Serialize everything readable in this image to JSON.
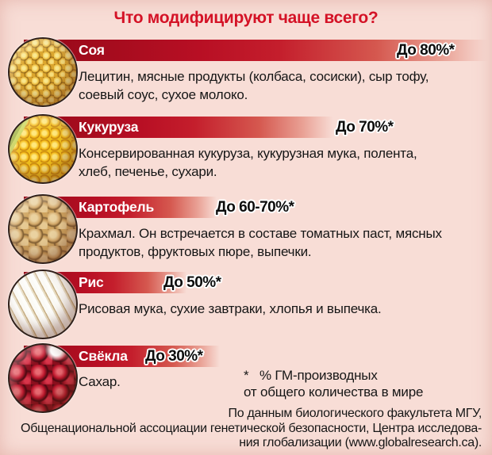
{
  "title": "Что модифицируют чаще всего?",
  "rows": [
    {
      "name": "Соя",
      "icon": "soybeans-icon",
      "percent_label": "До 80%*",
      "description": "Лецитин, мясные продукты (колбаса, сосиски), сыр тофу,\nсоевый соус, сухое молоко."
    },
    {
      "name": "Кукуруза",
      "icon": "corn-icon",
      "percent_label": "До 70%*",
      "description": "Консервированная кукуруза, кукурузная мука, полента,\nхлеб, печенье, сухари."
    },
    {
      "name": "Картофель",
      "icon": "potato-icon",
      "percent_label": "До 60-70%*",
      "description": "Крахмал. Он встречается в составе томатных паст, мясных\nпродуктов, фруктовых пюре, выпечки."
    },
    {
      "name": "Рис",
      "icon": "rice-icon",
      "percent_label": "До 50%*",
      "description": "Рисовая мука, сухие завтраки, хлопья и выпечка."
    },
    {
      "name": "Свёкла",
      "icon": "beet-icon",
      "percent_label": "До 30%*",
      "description": "Сахар."
    }
  ],
  "footnote": "*   % ГМ-производных\nот общего количества в мире",
  "source": "По данным биологического факультета МГУ,\nОбщенациональной ассоциации генетической безопасности, Центра исследова-\nния глобализации (www.globalresearch.ca).",
  "colors": {
    "background": "#f8ddd6",
    "bar_dark_red": "#940918",
    "bar_red": "#c41e2c",
    "title_red": "#d41226",
    "text": "#161616",
    "bar_name_text": "#ffffff"
  },
  "chart_data": {
    "type": "bar",
    "orientation": "horizontal",
    "title": "Что модифицируют чаще всего?",
    "categories": [
      "Соя",
      "Кукуруза",
      "Картофель",
      "Рис",
      "Свёкла"
    ],
    "values": [
      80,
      70,
      65,
      50,
      30
    ],
    "value_labels": [
      "До 80%*",
      "До 70%*",
      "До 60-70%*",
      "До 50%*",
      "До 30%*"
    ],
    "value_note": "* % ГМ-производных от общего количества в мире",
    "xlim": [
      0,
      100
    ],
    "legend": "none",
    "grid": false
  }
}
